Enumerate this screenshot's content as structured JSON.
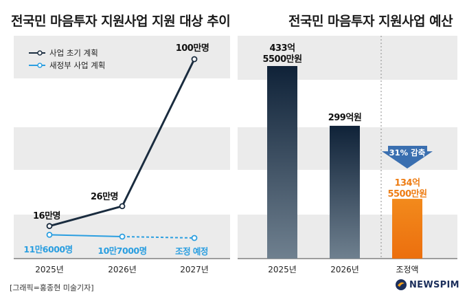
{
  "left_title": "전국민 마음투자 지원사업 지원 대상 추이",
  "right_title": "전국민 마음투자 지원사업 예산",
  "credit": "[그래픽=홍종현 미술기자]",
  "logo_text": "NEWSPIM",
  "colors": {
    "navy": "#1a2c3f",
    "blue": "#2a9ee0",
    "orange": "#ee7d14",
    "band": "#ebebeb",
    "axis": "#444444",
    "bar_top": "#0f2238",
    "bar_bottom": "#6f808f",
    "arrow": "#3a6fb0"
  },
  "chart_data": [
    {
      "type": "line",
      "title": "전국민 마음투자 지원사업 지원 대상 추이",
      "unit": "명",
      "categories": [
        "2025년",
        "2026년",
        "2027년"
      ],
      "legend_position": "top-left",
      "series": [
        {
          "name": "사업 초기 계획",
          "values": [
            160000,
            260000,
            1000000
          ],
          "labels": [
            "16만명",
            "26만명",
            "100만명"
          ],
          "line_style": "solid",
          "color": "#1a2c3f"
        },
        {
          "name": "새정부 사업 계획",
          "values": [
            116000,
            107000,
            100000
          ],
          "labels": [
            "11만6000명",
            "10만7000명",
            "조정 예정"
          ],
          "line_style": "solid-then-dashed",
          "color": "#2a9ee0"
        }
      ]
    },
    {
      "type": "bar",
      "title": "전국민 마음투자 지원사업 예산",
      "unit": "원",
      "categories": [
        "2025년",
        "2026년",
        "조정액"
      ],
      "values": [
        43355000000,
        29900000000,
        13455000000
      ],
      "labels": [
        "433억\n5500만원",
        "299억원",
        "134억\n5500만원"
      ],
      "annotation": "31% 감축"
    }
  ]
}
